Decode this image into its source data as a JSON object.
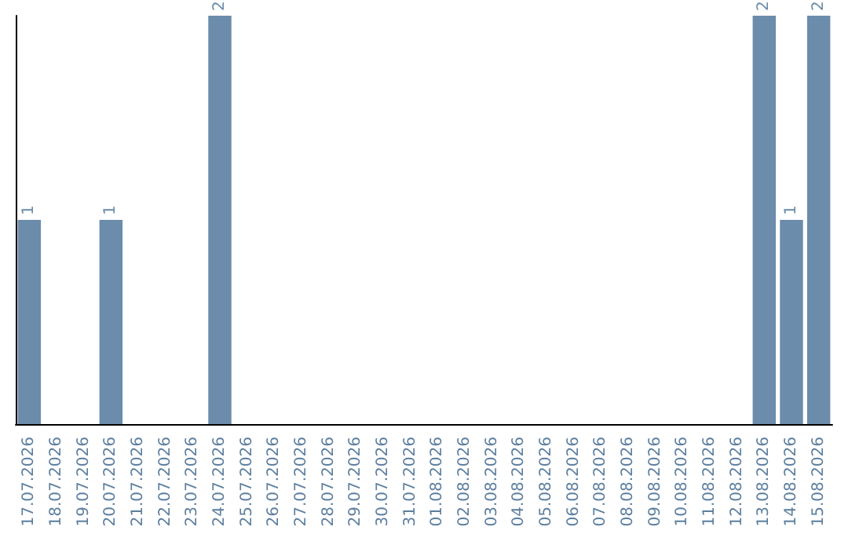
{
  "chart_data": {
    "type": "bar",
    "categories": [
      "17.07.2026",
      "18.07.2026",
      "19.07.2026",
      "20.07.2026",
      "21.07.2026",
      "22.07.2026",
      "23.07.2026",
      "24.07.2026",
      "25.07.2026",
      "26.07.2026",
      "27.07.2026",
      "28.07.2026",
      "29.07.2026",
      "30.07.2026",
      "31.07.2026",
      "01.08.2026",
      "02.08.2026",
      "03.08.2026",
      "04.08.2026",
      "05.08.2026",
      "06.08.2026",
      "07.08.2026",
      "08.08.2026",
      "09.08.2026",
      "10.08.2026",
      "11.08.2026",
      "12.08.2026",
      "13.08.2026",
      "14.08.2026",
      "15.08.2026"
    ],
    "values": [
      1,
      0,
      0,
      1,
      0,
      0,
      0,
      2,
      0,
      0,
      0,
      0,
      0,
      0,
      0,
      0,
      0,
      0,
      0,
      0,
      0,
      0,
      0,
      0,
      0,
      0,
      0,
      2,
      1,
      2
    ],
    "value_labels": [
      "1",
      null,
      null,
      "1",
      null,
      null,
      null,
      "2",
      null,
      null,
      null,
      null,
      null,
      null,
      null,
      null,
      null,
      null,
      null,
      null,
      null,
      null,
      null,
      null,
      null,
      null,
      null,
      "2",
      "1",
      "2"
    ],
    "color": "#6b8cab",
    "ylim": [
      0,
      2
    ],
    "tick_labels": "x"
  }
}
